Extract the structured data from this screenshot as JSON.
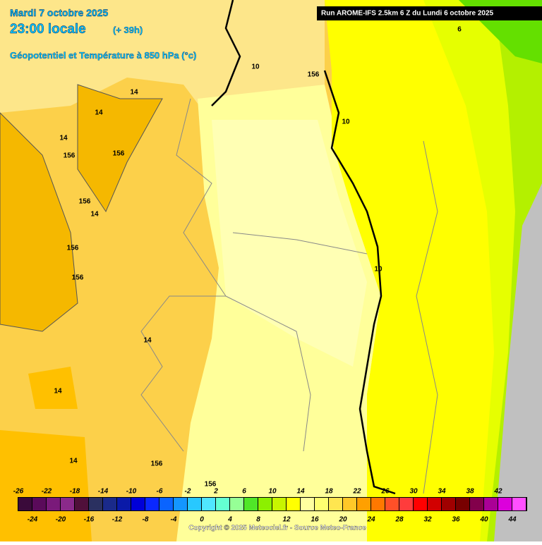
{
  "header": {
    "date": "Mardi 7 octobre 2025",
    "time": "23:00 locale",
    "lead": "(+ 39h)",
    "field": "Géopotentiel et Température à 850 hPa (°c)",
    "run": "Run AROME-IFS 2.5km 6 Z du Lundi 6 octobre 2025"
  },
  "contour_labels": [
    "14",
    "14",
    "14",
    "156",
    "156",
    "156",
    "14",
    "156",
    "156",
    "14",
    "14",
    "14",
    "156",
    "10",
    "10",
    "156",
    "10",
    "6",
    "156"
  ],
  "legend": {
    "upper_labels": [
      "-26",
      "-22",
      "-18",
      "-14",
      "-10",
      "-6",
      "-2",
      "2",
      "6",
      "10",
      "14",
      "18",
      "22",
      "26",
      "30",
      "34",
      "38",
      "42"
    ],
    "lower_labels": [
      "-24",
      "-20",
      "-16",
      "-12",
      "-8",
      "-4",
      "0",
      "4",
      "8",
      "12",
      "16",
      "20",
      "24",
      "28",
      "32",
      "36",
      "40",
      "44"
    ],
    "colors": [
      "#3a0a3a",
      "#5a0a5a",
      "#7a1a7a",
      "#8a2a8a",
      "#50103a",
      "#2a3060",
      "#1a2a8a",
      "#0a1aa8",
      "#0000d8",
      "#0a28ff",
      "#0a64ff",
      "#1496ff",
      "#28c8ff",
      "#50e6ff",
      "#64ffd2",
      "#96ff96",
      "#50e628",
      "#8cf000",
      "#c8f500",
      "#ffff00",
      "#ffffa0",
      "#ffff70",
      "#ffe650",
      "#ffc828",
      "#ffa000",
      "#ff7800",
      "#ff5028",
      "#ff3c3c",
      "#ff0000",
      "#d20000",
      "#a00000",
      "#780000",
      "#82004b",
      "#aa0096",
      "#dc00dc",
      "#ff50ff"
    ]
  },
  "footer": {
    "copyright": "Copyright © 2025 Meteociel.fr - Source Meteo-France"
  }
}
